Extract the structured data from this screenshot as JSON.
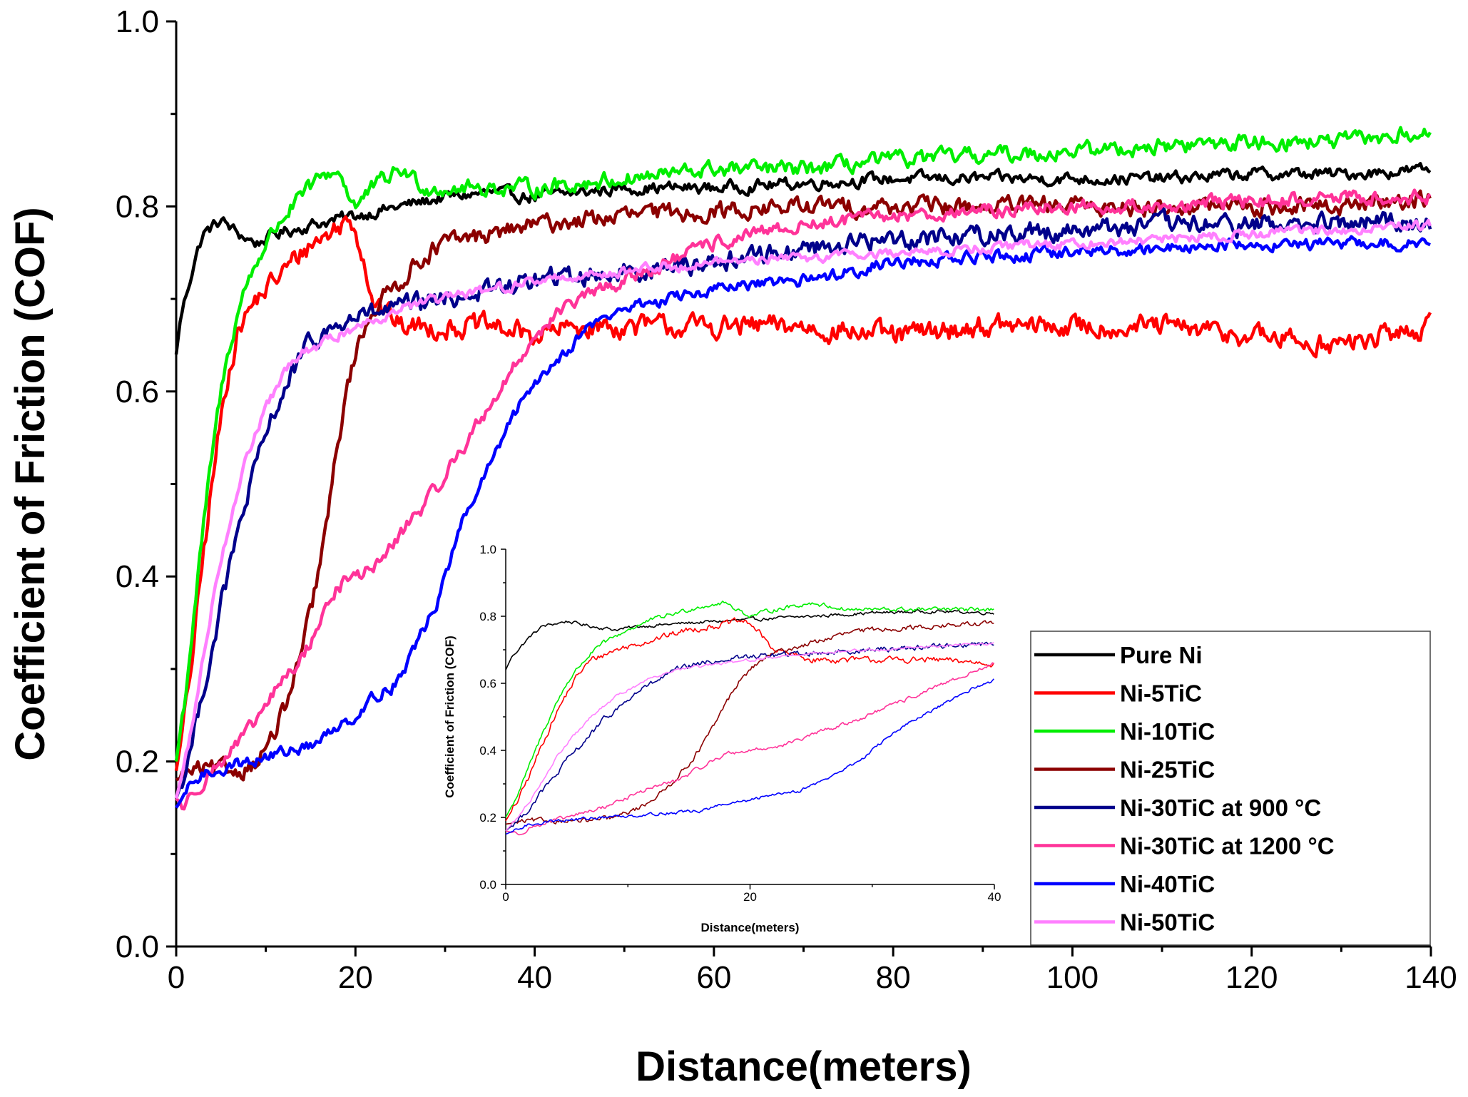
{
  "chart_data": [
    {
      "type": "line",
      "role": "main",
      "title": "",
      "xlabel": "Distance(meters)",
      "ylabel": "Coefficient of Friction (COF)",
      "xlim": [
        0,
        140
      ],
      "ylim": [
        0,
        1.0
      ],
      "xticks": [
        "0",
        "20",
        "40",
        "60",
        "80",
        "100",
        "120",
        "140"
      ],
      "yticks": [
        "0.0",
        "0.2",
        "0.4",
        "0.6",
        "0.8",
        "1.0"
      ],
      "legend_position": "bottom-right",
      "series": [
        {
          "name": "Pure Ni",
          "color": "#000000",
          "noise": 0.012,
          "points": [
            [
              0,
              0.64
            ],
            [
              0.5,
              0.68
            ],
            [
              1,
              0.7
            ],
            [
              2,
              0.74
            ],
            [
              3,
              0.77
            ],
            [
              5,
              0.785
            ],
            [
              7,
              0.77
            ],
            [
              9,
              0.76
            ],
            [
              11,
              0.77
            ],
            [
              15,
              0.78
            ],
            [
              20,
              0.79
            ],
            [
              25,
              0.8
            ],
            [
              30,
              0.81
            ],
            [
              35,
              0.815
            ],
            [
              40,
              0.81
            ],
            [
              50,
              0.82
            ],
            [
              60,
              0.82
            ],
            [
              70,
              0.825
            ],
            [
              80,
              0.83
            ],
            [
              90,
              0.83
            ],
            [
              100,
              0.83
            ],
            [
              110,
              0.83
            ],
            [
              120,
              0.835
            ],
            [
              130,
              0.835
            ],
            [
              140,
              0.84
            ]
          ]
        },
        {
          "name": "Ni-5TiC",
          "color": "#ff0000",
          "noise": 0.022,
          "points": [
            [
              0,
              0.19
            ],
            [
              1,
              0.25
            ],
            [
              2,
              0.33
            ],
            [
              3,
              0.42
            ],
            [
              4,
              0.5
            ],
            [
              5,
              0.57
            ],
            [
              6,
              0.63
            ],
            [
              7,
              0.67
            ],
            [
              9,
              0.7
            ],
            [
              11,
              0.72
            ],
            [
              13,
              0.74
            ],
            [
              15,
              0.76
            ],
            [
              17,
              0.77
            ],
            [
              19,
              0.785
            ],
            [
              20,
              0.78
            ],
            [
              21,
              0.74
            ],
            [
              22,
              0.7
            ],
            [
              25,
              0.67
            ],
            [
              30,
              0.67
            ],
            [
              35,
              0.67
            ],
            [
              40,
              0.66
            ],
            [
              45,
              0.67
            ],
            [
              50,
              0.67
            ],
            [
              60,
              0.67
            ],
            [
              70,
              0.67
            ],
            [
              80,
              0.66
            ],
            [
              90,
              0.67
            ],
            [
              100,
              0.67
            ],
            [
              110,
              0.67
            ],
            [
              120,
              0.66
            ],
            [
              130,
              0.65
            ],
            [
              140,
              0.67
            ]
          ]
        },
        {
          "name": "Ni-10TiC",
          "color": "#00ee00",
          "noise": 0.016,
          "points": [
            [
              0,
              0.2
            ],
            [
              1,
              0.27
            ],
            [
              2,
              0.36
            ],
            [
              3,
              0.45
            ],
            [
              4,
              0.53
            ],
            [
              5,
              0.6
            ],
            [
              6,
              0.65
            ],
            [
              7,
              0.69
            ],
            [
              8,
              0.72
            ],
            [
              10,
              0.76
            ],
            [
              12,
              0.79
            ],
            [
              14,
              0.81
            ],
            [
              16,
              0.83
            ],
            [
              18,
              0.84
            ],
            [
              20,
              0.8
            ],
            [
              22,
              0.82
            ],
            [
              25,
              0.84
            ],
            [
              28,
              0.82
            ],
            [
              30,
              0.82
            ],
            [
              35,
              0.82
            ],
            [
              40,
              0.82
            ],
            [
              50,
              0.83
            ],
            [
              60,
              0.84
            ],
            [
              70,
              0.84
            ],
            [
              80,
              0.85
            ],
            [
              90,
              0.855
            ],
            [
              100,
              0.86
            ],
            [
              110,
              0.865
            ],
            [
              120,
              0.87
            ],
            [
              130,
              0.87
            ],
            [
              140,
              0.88
            ]
          ]
        },
        {
          "name": "Ni-25TiC",
          "color": "#8b0000",
          "noise": 0.018,
          "points": [
            [
              0,
              0.18
            ],
            [
              2,
              0.19
            ],
            [
              5,
              0.19
            ],
            [
              7,
              0.19
            ],
            [
              9,
              0.2
            ],
            [
              11,
              0.23
            ],
            [
              13,
              0.28
            ],
            [
              15,
              0.36
            ],
            [
              16,
              0.41
            ],
            [
              17,
              0.47
            ],
            [
              18,
              0.54
            ],
            [
              19,
              0.6
            ],
            [
              20,
              0.64
            ],
            [
              21,
              0.67
            ],
            [
              22,
              0.69
            ],
            [
              24,
              0.71
            ],
            [
              26,
              0.73
            ],
            [
              28,
              0.75
            ],
            [
              30,
              0.76
            ],
            [
              35,
              0.77
            ],
            [
              40,
              0.78
            ],
            [
              50,
              0.79
            ],
            [
              60,
              0.795
            ],
            [
              70,
              0.8
            ],
            [
              80,
              0.8
            ],
            [
              90,
              0.8
            ],
            [
              100,
              0.8
            ],
            [
              110,
              0.8
            ],
            [
              120,
              0.8
            ],
            [
              130,
              0.8
            ],
            [
              140,
              0.81
            ]
          ]
        },
        {
          "name": "Ni-30TiC at 900 °C",
          "color": "#00008b",
          "noise": 0.02,
          "points": [
            [
              0,
              0.16
            ],
            [
              1,
              0.19
            ],
            [
              2,
              0.23
            ],
            [
              3,
              0.28
            ],
            [
              4,
              0.32
            ],
            [
              5,
              0.37
            ],
            [
              6,
              0.41
            ],
            [
              7,
              0.45
            ],
            [
              8,
              0.49
            ],
            [
              9,
              0.52
            ],
            [
              10,
              0.55
            ],
            [
              11,
              0.58
            ],
            [
              12,
              0.6
            ],
            [
              13,
              0.62
            ],
            [
              14,
              0.64
            ],
            [
              16,
              0.66
            ],
            [
              18,
              0.67
            ],
            [
              20,
              0.68
            ],
            [
              25,
              0.69
            ],
            [
              30,
              0.7
            ],
            [
              35,
              0.71
            ],
            [
              40,
              0.72
            ],
            [
              50,
              0.73
            ],
            [
              60,
              0.74
            ],
            [
              70,
              0.755
            ],
            [
              80,
              0.765
            ],
            [
              90,
              0.77
            ],
            [
              100,
              0.775
            ],
            [
              110,
              0.78
            ],
            [
              120,
              0.78
            ],
            [
              130,
              0.78
            ],
            [
              140,
              0.785
            ]
          ]
        },
        {
          "name": "Ni-30TiC at 1200 °C",
          "color": "#ff3399",
          "noise": 0.014,
          "points": [
            [
              0,
              0.16
            ],
            [
              1,
              0.15
            ],
            [
              2,
              0.17
            ],
            [
              4,
              0.19
            ],
            [
              6,
              0.21
            ],
            [
              8,
              0.23
            ],
            [
              10,
              0.26
            ],
            [
              12,
              0.29
            ],
            [
              14,
              0.31
            ],
            [
              16,
              0.35
            ],
            [
              18,
              0.39
            ],
            [
              20,
              0.4
            ],
            [
              22,
              0.41
            ],
            [
              24,
              0.43
            ],
            [
              26,
              0.46
            ],
            [
              28,
              0.48
            ],
            [
              30,
              0.51
            ],
            [
              32,
              0.54
            ],
            [
              34,
              0.57
            ],
            [
              36,
              0.6
            ],
            [
              38,
              0.63
            ],
            [
              40,
              0.66
            ],
            [
              42,
              0.68
            ],
            [
              45,
              0.7
            ],
            [
              50,
              0.72
            ],
            [
              55,
              0.74
            ],
            [
              60,
              0.76
            ],
            [
              70,
              0.78
            ],
            [
              80,
              0.79
            ],
            [
              90,
              0.795
            ],
            [
              100,
              0.8
            ],
            [
              110,
              0.8
            ],
            [
              120,
              0.805
            ],
            [
              130,
              0.81
            ],
            [
              140,
              0.81
            ]
          ]
        },
        {
          "name": "Ni-40TiC",
          "color": "#0000ff",
          "noise": 0.012,
          "points": [
            [
              0,
              0.15
            ],
            [
              2,
              0.18
            ],
            [
              4,
              0.19
            ],
            [
              8,
              0.2
            ],
            [
              12,
              0.21
            ],
            [
              16,
              0.22
            ],
            [
              18,
              0.24
            ],
            [
              20,
              0.25
            ],
            [
              22,
              0.27
            ],
            [
              24,
              0.28
            ],
            [
              26,
              0.31
            ],
            [
              28,
              0.35
            ],
            [
              29,
              0.37
            ],
            [
              30,
              0.4
            ],
            [
              31,
              0.43
            ],
            [
              32,
              0.46
            ],
            [
              34,
              0.5
            ],
            [
              36,
              0.54
            ],
            [
              38,
              0.58
            ],
            [
              40,
              0.61
            ],
            [
              42,
              0.63
            ],
            [
              44,
              0.65
            ],
            [
              46,
              0.67
            ],
            [
              50,
              0.69
            ],
            [
              55,
              0.7
            ],
            [
              60,
              0.71
            ],
            [
              65,
              0.715
            ],
            [
              70,
              0.72
            ],
            [
              75,
              0.73
            ],
            [
              80,
              0.74
            ],
            [
              90,
              0.745
            ],
            [
              100,
              0.75
            ],
            [
              110,
              0.755
            ],
            [
              120,
              0.76
            ],
            [
              130,
              0.76
            ],
            [
              140,
              0.76
            ]
          ]
        },
        {
          "name": "Ni-50TiC",
          "color": "#ff80ff",
          "noise": 0.01,
          "points": [
            [
              0,
              0.16
            ],
            [
              1,
              0.2
            ],
            [
              2,
              0.25
            ],
            [
              3,
              0.31
            ],
            [
              4,
              0.37
            ],
            [
              5,
              0.42
            ],
            [
              6,
              0.46
            ],
            [
              7,
              0.5
            ],
            [
              8,
              0.53
            ],
            [
              9,
              0.56
            ],
            [
              10,
              0.58
            ],
            [
              11,
              0.6
            ],
            [
              12,
              0.62
            ],
            [
              14,
              0.64
            ],
            [
              16,
              0.65
            ],
            [
              18,
              0.66
            ],
            [
              20,
              0.67
            ],
            [
              25,
              0.69
            ],
            [
              30,
              0.7
            ],
            [
              35,
              0.71
            ],
            [
              40,
              0.72
            ],
            [
              50,
              0.73
            ],
            [
              60,
              0.74
            ],
            [
              70,
              0.745
            ],
            [
              80,
              0.75
            ],
            [
              90,
              0.755
            ],
            [
              100,
              0.76
            ],
            [
              110,
              0.765
            ],
            [
              120,
              0.77
            ],
            [
              130,
              0.775
            ],
            [
              140,
              0.78
            ]
          ]
        }
      ]
    },
    {
      "type": "line",
      "role": "inset",
      "title": "",
      "xlabel": "Distance(meters)",
      "ylabel": "Coefficient of Friction (COF)",
      "xlim": [
        0,
        40
      ],
      "ylim": [
        0,
        1.0
      ],
      "xticks": [
        "0",
        "20",
        "40"
      ],
      "yticks": [
        "0.0",
        "0.2",
        "0.4",
        "0.6",
        "0.8",
        "1.0"
      ],
      "note": "Zoomed view of the first 40 m of the same eight series"
    }
  ],
  "legend": {
    "entries": [
      {
        "label": "Pure Ni",
        "color": "#000000"
      },
      {
        "label": "Ni-5TiC",
        "color": "#ff0000"
      },
      {
        "label": "Ni-10TiC",
        "color": "#00ee00"
      },
      {
        "label": "Ni-25TiC",
        "color": "#8b0000"
      },
      {
        "label": "Ni-30TiC at 900 °C",
        "color": "#00008b"
      },
      {
        "label": "Ni-30TiC at 1200 °C",
        "color": "#ff3399"
      },
      {
        "label": "Ni-40TiC",
        "color": "#0000ff"
      },
      {
        "label": "Ni-50TiC",
        "color": "#ff80ff"
      }
    ]
  }
}
